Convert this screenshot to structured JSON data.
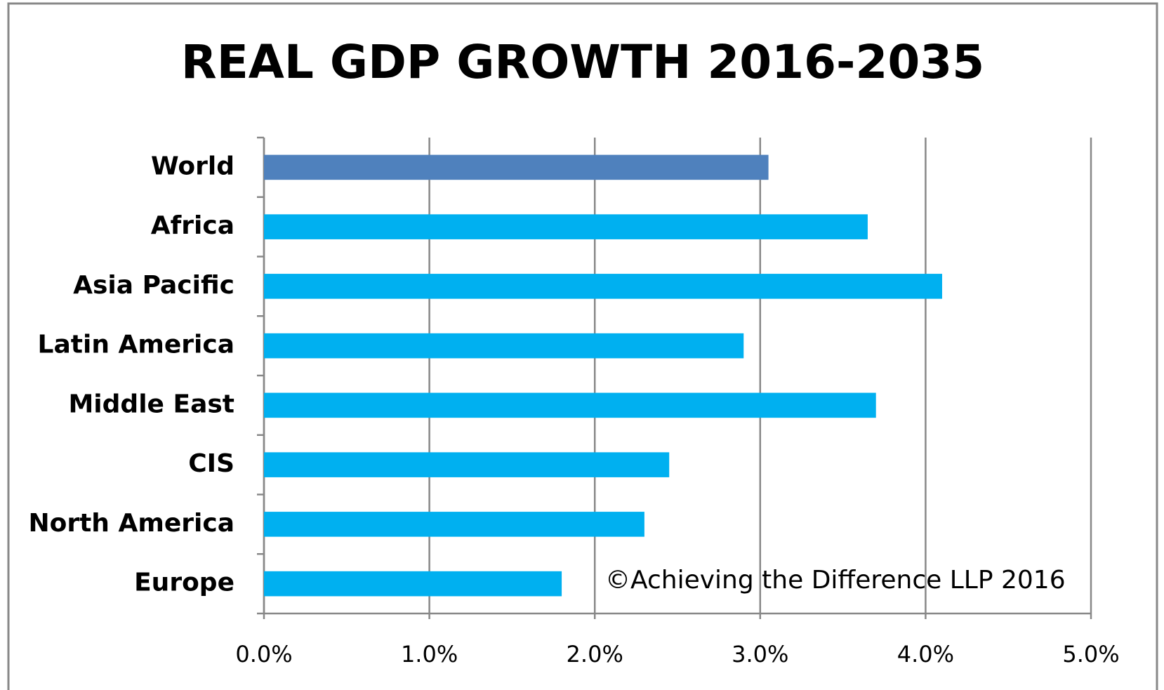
{
  "chart_data": {
    "type": "barh",
    "title": "REAL GDP GROWTH 2016-2035",
    "categories": [
      "World",
      "Africa",
      "Asia Pacific",
      "Latin America",
      "Middle East",
      "CIS",
      "North America",
      "Europe"
    ],
    "values": [
      3.05,
      3.65,
      4.1,
      2.9,
      3.7,
      2.45,
      2.3,
      1.8
    ],
    "colors": [
      "#4f81bd",
      "#00b0f0",
      "#00b0f0",
      "#00b0f0",
      "#00b0f0",
      "#00b0f0",
      "#00b0f0",
      "#00b0f0"
    ],
    "xlim": [
      0,
      5
    ],
    "xticks": [
      {
        "value": 0,
        "label": "0.0%"
      },
      {
        "value": 1,
        "label": "1.0%"
      },
      {
        "value": 2,
        "label": "2.0%"
      },
      {
        "value": 3,
        "label": "3.0%"
      },
      {
        "value": 4,
        "label": "4.0%"
      },
      {
        "value": 5,
        "label": "5.0%"
      }
    ],
    "grid": true,
    "annotation": "©Achieving the Difference LLP 2016"
  }
}
